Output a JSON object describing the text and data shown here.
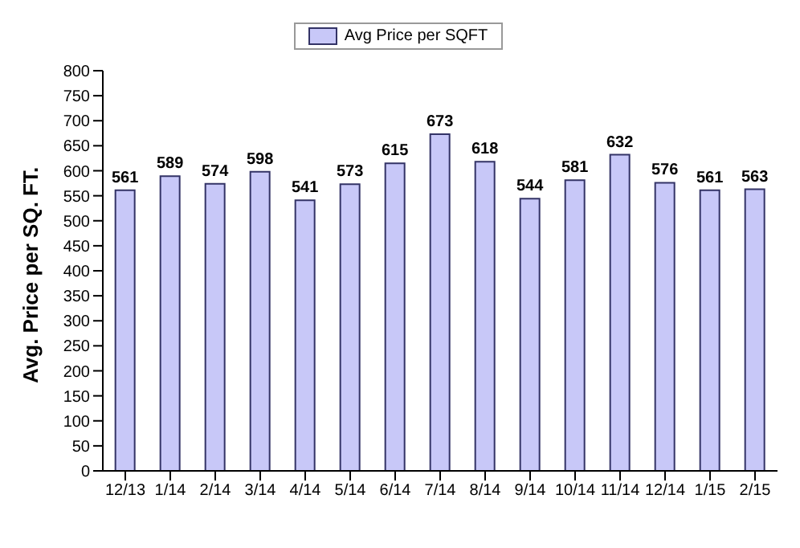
{
  "chart_data": {
    "type": "bar",
    "ylabel": "Avg. Price per SQ. FT.",
    "categories": [
      "12/13",
      "1/14",
      "2/14",
      "3/14",
      "4/14",
      "5/14",
      "6/14",
      "7/14",
      "8/14",
      "9/14",
      "10/14",
      "11/14",
      "12/14",
      "1/15",
      "2/15"
    ],
    "series": [
      {
        "name": "Avg Price per SQFT",
        "color": "#c8c8f8",
        "values": [
          561,
          589,
          574,
          598,
          541,
          573,
          615,
          673,
          618,
          544,
          581,
          632,
          576,
          561,
          563
        ]
      }
    ],
    "ylim": [
      0,
      800
    ],
    "yticks": [
      0,
      50,
      100,
      150,
      200,
      250,
      300,
      350,
      400,
      450,
      500,
      550,
      600,
      650,
      700,
      750,
      800
    ],
    "data_labels": true,
    "legend": "top",
    "grid": false
  }
}
